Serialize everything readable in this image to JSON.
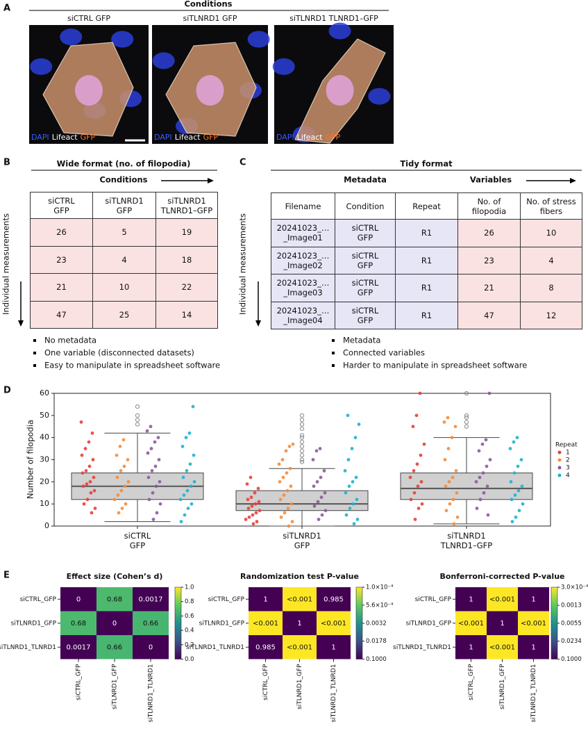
{
  "panel_a": {
    "label": "A",
    "header": "Conditions",
    "images": [
      {
        "title": "siCTRL GFP",
        "stain": [
          "DAPI",
          "Lifeact",
          "GFP"
        ]
      },
      {
        "title": "siTLNRD1 GFP",
        "stain": [
          "DAPI",
          "Lifeact",
          "GFP"
        ]
      },
      {
        "title": "siTLNRD1 TLNRD1–GFP",
        "stain": [
          "DAPI",
          "Lifeact",
          "GFP"
        ]
      }
    ]
  },
  "panel_b": {
    "label": "B",
    "title": "Wide format (no. of filopodia)",
    "conditions": "Conditions",
    "side_label": "Individual measurements",
    "table": {
      "header": [
        "siCTRL\nGFP",
        "siTLNRD1\nGFP",
        "siTLNRD1\nTLNRD1–GFP"
      ],
      "rows": [
        [
          26,
          5,
          19
        ],
        [
          23,
          4,
          18
        ],
        [
          21,
          10,
          22
        ],
        [
          47,
          25,
          14
        ]
      ]
    },
    "bullets": [
      "No metadata",
      "One variable (disconnected datasets)",
      "Easy to manipulate in spreadsheet software"
    ]
  },
  "panel_c": {
    "label": "C",
    "title": "Tidy format",
    "metadata": "Metadata",
    "variables": "Variables",
    "side_label": "Individual measurements",
    "table": {
      "header": [
        "Filename",
        "Condition",
        "Repeat",
        "No. of\nfilopodia",
        "No. of stress\nfibers"
      ],
      "rows": [
        [
          "20241023_…\n_Image01",
          "siCTRL\nGFP",
          "R1",
          26,
          10
        ],
        [
          "20241023_…\n_Image02",
          "siCTRL\nGFP",
          "R1",
          23,
          4
        ],
        [
          "20241023_…\n_Image03",
          "siCTRL\nGFP",
          "R1",
          21,
          8
        ],
        [
          "20241023_…\n_Image04",
          "siCTRL\nGFP",
          "R1",
          47,
          12
        ]
      ]
    },
    "bullets": [
      "Metadata",
      "Connected variables",
      "Harder to manipulate in spreadsheet software"
    ]
  },
  "panel_d": {
    "label": "D"
  },
  "panel_e": {
    "label": "E"
  },
  "chart_data": [
    {
      "type": "box_strip",
      "y_label": "Number of filopodia",
      "categories": [
        "siCTRL\nGFP",
        "siTLNRD1\nGFP",
        "siTLNRD1\nTLNRD1–GFP"
      ],
      "ylim": [
        0,
        60
      ],
      "yticks": [
        0,
        10,
        20,
        30,
        40,
        50,
        60
      ],
      "boxes": [
        {
          "q1": 12,
          "median": 18,
          "q3": 24,
          "whisker_low": 2,
          "whisker_high": 42,
          "outliers": [
            46,
            48,
            50,
            54
          ]
        },
        {
          "q1": 7,
          "median": 10,
          "q3": 16,
          "whisker_low": 0,
          "whisker_high": 26,
          "outliers": [
            29,
            30,
            32,
            34,
            36,
            38,
            40,
            41,
            44,
            46,
            48,
            50
          ]
        },
        {
          "q1": 12,
          "median": 17,
          "q3": 24,
          "whisker_low": 1,
          "whisker_high": 40,
          "outliers": [
            45,
            47,
            49,
            50,
            60
          ]
        }
      ],
      "legend_title": "Repeat",
      "series": [
        {
          "name": "1",
          "color": "#e8403a",
          "values": [
            [
              47,
              42,
              38,
              35,
              32,
              30,
              27,
              25,
              24,
              22,
              20,
              19,
              18,
              16,
              15,
              12,
              10,
              8,
              6
            ],
            [
              22,
              19,
              17,
              15,
              13,
              12,
              11,
              10,
              9,
              8,
              7,
              6,
              5,
              4,
              3,
              2,
              1
            ],
            [
              60,
              50,
              45,
              37,
              32,
              28,
              25,
              22,
              20,
              18,
              15,
              12,
              10,
              8,
              3
            ]
          ]
        },
        {
          "name": "2",
          "color": "#f58c3a",
          "values": [
            [
              39,
              36,
              32,
              30,
              27,
              25,
              22,
              20,
              18,
              16,
              14,
              12,
              10,
              8,
              6
            ],
            [
              37,
              36,
              34,
              30,
              28,
              26,
              24,
              22,
              20,
              18,
              16,
              14,
              12,
              10,
              8,
              6,
              4,
              2,
              0
            ],
            [
              49,
              47,
              45,
              40,
              35,
              30,
              25,
              22,
              20,
              18,
              15,
              12,
              10,
              7,
              4,
              1
            ]
          ]
        },
        {
          "name": "3",
          "color": "#8c5a9c",
          "values": [
            [
              45,
              43,
              40,
              38,
              35,
              33,
              30,
              27,
              25,
              22,
              20,
              18,
              15,
              12,
              10,
              6,
              3
            ],
            [
              35,
              34,
              30,
              25,
              22,
              20,
              18,
              15,
              13,
              11,
              9,
              7,
              5,
              3
            ],
            [
              60,
              39,
              37,
              34,
              30,
              27,
              24,
              22,
              20,
              18,
              15,
              12,
              8,
              5
            ]
          ]
        },
        {
          "name": "4",
          "color": "#1fb1d2",
          "values": [
            [
              54,
              42,
              40,
              36,
              32,
              28,
              25,
              22,
              20,
              18,
              16,
              14,
              12,
              10,
              8,
              5,
              2
            ],
            [
              50,
              46,
              40,
              35,
              30,
              25,
              22,
              20,
              18,
              15,
              12,
              10,
              8,
              5,
              3,
              1
            ],
            [
              40,
              38,
              35,
              30,
              27,
              24,
              20,
              18,
              16,
              14,
              12,
              10,
              7,
              4,
              2
            ]
          ]
        }
      ]
    },
    {
      "type": "heatmap",
      "title": "Effect size (Cohen’s d)",
      "rows": [
        "siCTRL_GFP",
        "siTLNRD1_GFP",
        "siTLNRD1_TLNRD1"
      ],
      "columns": [
        "siCTRL_GFP",
        "siTLNRD1_GFP",
        "siTLNRD1_TLNRD1"
      ],
      "values": [
        [
          0,
          0.68,
          0.0017
        ],
        [
          0.68,
          0,
          0.66
        ],
        [
          0.0017,
          0.66,
          0
        ]
      ],
      "colorbar_lim": [
        0,
        1
      ],
      "log_scale": false,
      "colorbar_ticks": [
        {
          "value": 0,
          "label": "0.0"
        },
        0.2,
        0.4,
        0.6,
        0.8,
        {
          "value": 1,
          "label": "1.0"
        }
      ]
    },
    {
      "type": "heatmap",
      "title": "Randomization test P-value",
      "rows": [
        "siCTRL_GFP",
        "siTLNRD1_GFP",
        "siTLNRD1_TLNRD1"
      ],
      "columns": [
        "siCTRL_GFP",
        "siTLNRD1_GFP",
        "siTLNRD1_TLNRD1"
      ],
      "values": [
        [
          1,
          0.0001,
          0.985
        ],
        [
          0.0001,
          1,
          0.0001
        ],
        [
          0.985,
          0.0001,
          1
        ]
      ],
      "value_labels": [
        [
          "1",
          "<0.001",
          "0.985"
        ],
        [
          "<0.001",
          "1",
          "<0.001"
        ],
        [
          "0.985",
          "<0.001",
          "1"
        ]
      ],
      "colorbar_lim": [
        0.1,
        0.0001
      ],
      "log_scale": true,
      "colorbar_ticks": [
        {
          "value": 0.0001,
          "label": "1.0×10⁻⁴"
        },
        {
          "value": 0.00056,
          "label": "5.6×10⁻⁴"
        },
        0.0032,
        0.0178,
        {
          "value": 0.1,
          "label": "0.1000"
        }
      ]
    },
    {
      "type": "heatmap",
      "title": "Bonferroni-corrected P-value",
      "rows": [
        "siCTRL_GFP",
        "siTLNRD1_GFP",
        "siTLNRD1_TLNRD1"
      ],
      "columns": [
        "siCTRL_GFP",
        "siTLNRD1_GFP",
        "siTLNRD1_TLNRD1"
      ],
      "values": [
        [
          1,
          0.0003,
          1
        ],
        [
          0.0003,
          1,
          0.0003
        ],
        [
          1,
          0.0003,
          1
        ]
      ],
      "value_labels": [
        [
          "1",
          "<0.001",
          "1"
        ],
        [
          "<0.001",
          "1",
          "<0.001"
        ],
        [
          "1",
          "<0.001",
          "1"
        ]
      ],
      "colorbar_lim": [
        0.1,
        0.0003
      ],
      "log_scale": true,
      "colorbar_ticks": [
        {
          "value": 0.0003,
          "label": "3.0×10⁻⁴"
        },
        0.0013,
        0.0055,
        0.0234,
        {
          "value": 0.1,
          "label": "0.1000"
        }
      ]
    }
  ]
}
